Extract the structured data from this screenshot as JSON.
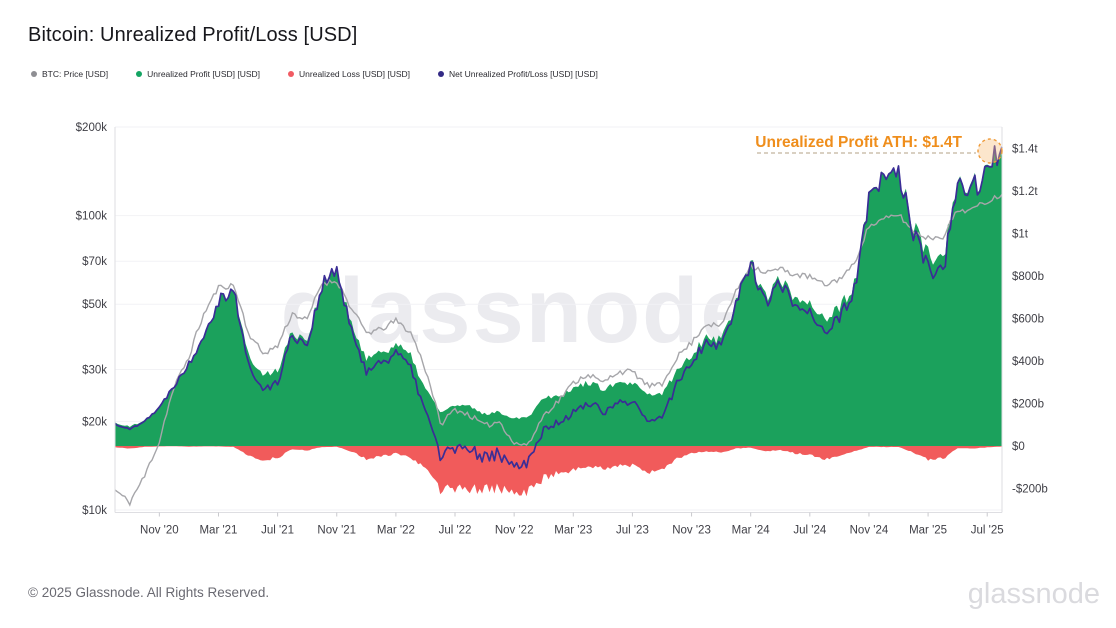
{
  "header": {
    "title": "Bitcoin: Unrealized Profit/Loss [USD]"
  },
  "legend": [
    {
      "label": "BTC: Price [USD]",
      "color": "#8e8e93"
    },
    {
      "label": "Unrealized Profit [USD] [USD]",
      "color": "#14a463"
    },
    {
      "label": "Unrealized Loss [USD] [USD]",
      "color": "#f15b63"
    },
    {
      "label": "Net Unrealized Profit/Loss [USD] [USD]",
      "color": "#332a85"
    }
  ],
  "annotation": {
    "text": "Unrealized Profit ATH: $1.4T",
    "text_color": "#ef8e1c",
    "dash_color": "#c2b49e",
    "circle_stroke": "#ef9b3a",
    "circle_fill": "rgba(248,189,120,0.38)"
  },
  "watermark": {
    "text": "glassnode",
    "color": "#ebebef"
  },
  "footer": {
    "copyright": "© 2025 Glassnode. All Rights Reserved.",
    "brand": "glassnode"
  },
  "chart_data": {
    "type": "area+line",
    "title": "Bitcoin: Unrealized Profit/Loss [USD]",
    "x_monthly": [
      "2020-08",
      "2020-09",
      "2020-10",
      "2020-11",
      "2020-12",
      "2021-01",
      "2021-02",
      "2021-03",
      "2021-04",
      "2021-05",
      "2021-06",
      "2021-07",
      "2021-08",
      "2021-09",
      "2021-10",
      "2021-11",
      "2021-12",
      "2022-01",
      "2022-02",
      "2022-03",
      "2022-04",
      "2022-05",
      "2022-06",
      "2022-07",
      "2022-08",
      "2022-09",
      "2022-10",
      "2022-11",
      "2022-12",
      "2023-01",
      "2023-02",
      "2023-03",
      "2023-04",
      "2023-05",
      "2023-06",
      "2023-07",
      "2023-08",
      "2023-09",
      "2023-10",
      "2023-11",
      "2023-12",
      "2024-01",
      "2024-02",
      "2024-03",
      "2024-04",
      "2024-05",
      "2024-06",
      "2024-07",
      "2024-08",
      "2024-09",
      "2024-10",
      "2024-11",
      "2024-12",
      "2025-01",
      "2025-02",
      "2025-03",
      "2025-04",
      "2025-05",
      "2025-06",
      "2025-07",
      "2025-08"
    ],
    "series": [
      {
        "name": "BTC: Price [USD]",
        "axis": "left",
        "unit": "USD thousands",
        "color": "#a6a6aa",
        "values": [
          11.7,
          10.6,
          13.0,
          17.0,
          26.0,
          33.0,
          46.0,
          57.0,
          58.0,
          40.0,
          34.0,
          36.0,
          46.5,
          44.0,
          59.0,
          60.0,
          48.0,
          40.0,
          41.0,
          44.0,
          40.0,
          30.0,
          19.5,
          22.0,
          21.0,
          19.3,
          20.0,
          16.8,
          16.7,
          21.0,
          23.5,
          27.0,
          29.0,
          27.0,
          29.5,
          29.5,
          26.5,
          26.5,
          33.0,
          37.0,
          43.0,
          42.0,
          55.0,
          68.0,
          64.0,
          66.0,
          63.0,
          62.0,
          58.0,
          61.0,
          68.0,
          92.0,
          97.0,
          101.0,
          88.0,
          84.0,
          85.0,
          104.0,
          105.0,
          112.0,
          118.0
        ]
      },
      {
        "name": "Unrealized Profit [USD] [USD]",
        "axis": "right",
        "unit": "USD billions",
        "color": "#1ba15c",
        "values": [
          110,
          90,
          125,
          180,
          290,
          390,
          530,
          690,
          750,
          430,
          330,
          360,
          540,
          500,
          760,
          830,
          560,
          420,
          440,
          480,
          420,
          270,
          160,
          190,
          185,
          150,
          160,
          130,
          140,
          230,
          240,
          270,
          300,
          270,
          290,
          295,
          240,
          245,
          350,
          430,
          520,
          500,
          680,
          880,
          700,
          780,
          700,
          680,
          600,
          640,
          760,
          1150,
          1260,
          1310,
          1030,
          900,
          880,
          1220,
          1230,
          1300,
          1400
        ]
      },
      {
        "name": "Unrealized Loss [USD] [USD]",
        "axis": "right",
        "unit": "USD billions (plotted negative)",
        "color": "#f15b5b",
        "values": [
          6,
          12,
          4,
          2,
          1,
          3,
          2,
          2,
          4,
          45,
          65,
          55,
          15,
          20,
          5,
          4,
          25,
          60,
          50,
          35,
          55,
          100,
          205,
          200,
          205,
          200,
          200,
          225,
          210,
          150,
          130,
          115,
          95,
          105,
          95,
          90,
          120,
          115,
          60,
          35,
          25,
          30,
          12,
          8,
          25,
          18,
          35,
          40,
          60,
          50,
          25,
          4,
          5,
          5,
          30,
          65,
          60,
          10,
          12,
          6,
          3
        ]
      },
      {
        "name": "Net Unrealized Profit/Loss [USD] [USD]",
        "axis": "right",
        "unit": "USD billions",
        "color": "#3a2d96",
        "values": [
          104,
          78,
          121,
          178,
          289,
          387,
          528,
          688,
          746,
          385,
          265,
          305,
          525,
          480,
          755,
          826,
          535,
          360,
          390,
          445,
          365,
          170,
          -45,
          -10,
          -20,
          -50,
          -40,
          -95,
          -70,
          80,
          110,
          155,
          205,
          165,
          195,
          205,
          120,
          130,
          290,
          395,
          495,
          470,
          668,
          872,
          675,
          762,
          665,
          640,
          540,
          590,
          735,
          1146,
          1255,
          1305,
          1000,
          835,
          820,
          1210,
          1218,
          1294,
          1397
        ]
      }
    ],
    "left_axis": {
      "scale": "log",
      "labels": [
        "$200k",
        "$100k",
        "$70k",
        "$50k",
        "$30k",
        "$20k",
        "$10k"
      ],
      "values": [
        200,
        100,
        70,
        50,
        30,
        20,
        10
      ]
    },
    "right_axis": {
      "scale": "linear",
      "labels": [
        "$1.4t",
        "$1.2t",
        "$1t",
        "$800b",
        "$600b",
        "$400b",
        "$200b",
        "$0",
        "-$200b"
      ],
      "values": [
        1400,
        1200,
        1000,
        800,
        600,
        400,
        200,
        0,
        -200
      ]
    },
    "x_ticks": {
      "month_indices": [
        3,
        7,
        11,
        15,
        19,
        23,
        27,
        31,
        35,
        39,
        43,
        47,
        51,
        55,
        59
      ],
      "labels": [
        "Nov '20",
        "Mar '21",
        "Jul '21",
        "Nov '21",
        "Mar '22",
        "Jul '22",
        "Nov '22",
        "Mar '23",
        "Jul '23",
        "Nov '23",
        "Mar '24",
        "Jul '24",
        "Nov '24",
        "Mar '25",
        "Jul '25"
      ]
    },
    "grid": "horizontal-faint",
    "legend_position": "top-left",
    "ath_marker": {
      "value_billions": 1400,
      "label": "Unrealized Profit ATH: $1.4T"
    }
  }
}
